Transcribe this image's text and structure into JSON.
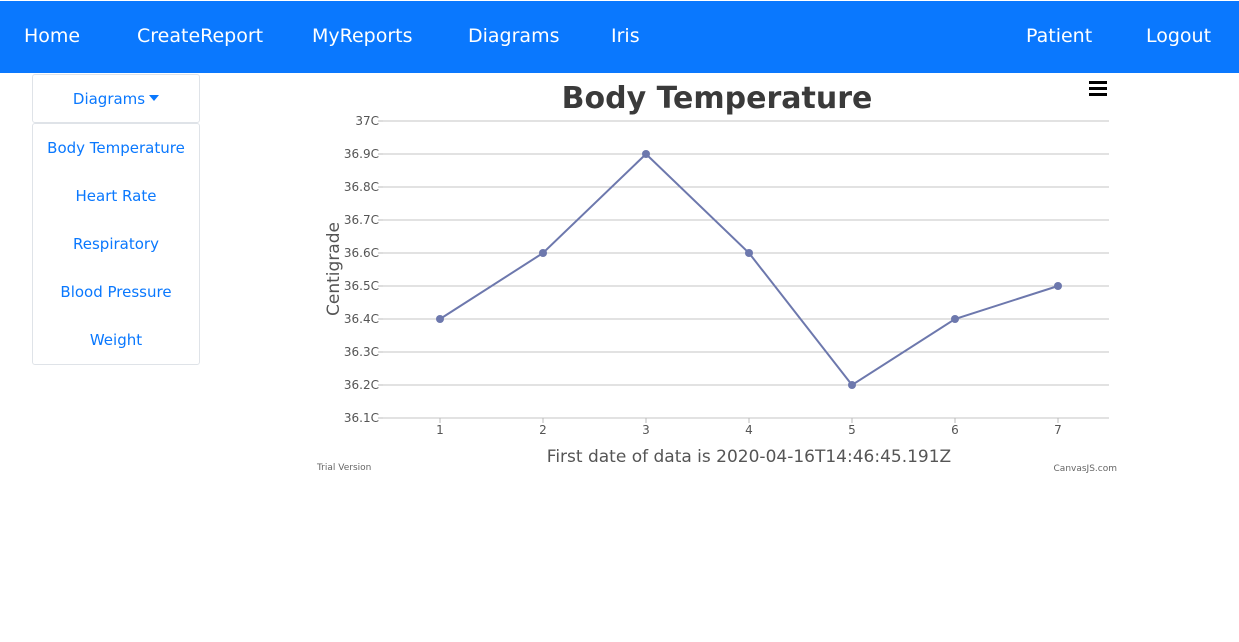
{
  "nav": {
    "home": "Home",
    "create_report": "CreateReport",
    "my_reports": "MyReports",
    "diagrams": "Diagrams",
    "iris": "Iris",
    "patient": "Patient",
    "logout": "Logout"
  },
  "sidebar": {
    "toggle_label": "Diagrams",
    "items": [
      {
        "label": "Body Temperature"
      },
      {
        "label": "Heart Rate"
      },
      {
        "label": "Respiratory"
      },
      {
        "label": "Blood Pressure"
      },
      {
        "label": "Weight"
      }
    ]
  },
  "chart_menu_icon": "hamburger-menu-icon",
  "colors": {
    "navbar": "#0a78fe",
    "link": "#0a78fe",
    "series": "#6d78ad"
  },
  "chart_data": {
    "type": "line",
    "title": "Body Temperature",
    "xlabel": "First date of data is 2020-04-16T14:46:45.191Z",
    "ylabel": "Centigrade",
    "x": [
      1,
      2,
      3,
      4,
      5,
      6,
      7
    ],
    "values": [
      36.4,
      36.6,
      36.9,
      36.6,
      36.2,
      36.4,
      36.5
    ],
    "ylim": [
      36.1,
      37.0
    ],
    "y_ticks": [
      "36.1C",
      "36.2C",
      "36.3C",
      "36.4C",
      "36.5C",
      "36.6C",
      "36.7C",
      "36.8C",
      "36.9C",
      "37C"
    ],
    "x_ticks": [
      "1",
      "2",
      "3",
      "4",
      "5",
      "6",
      "7"
    ],
    "grid": true,
    "watermark_left": "Trial Version",
    "watermark_right": "CanvasJS.com"
  }
}
